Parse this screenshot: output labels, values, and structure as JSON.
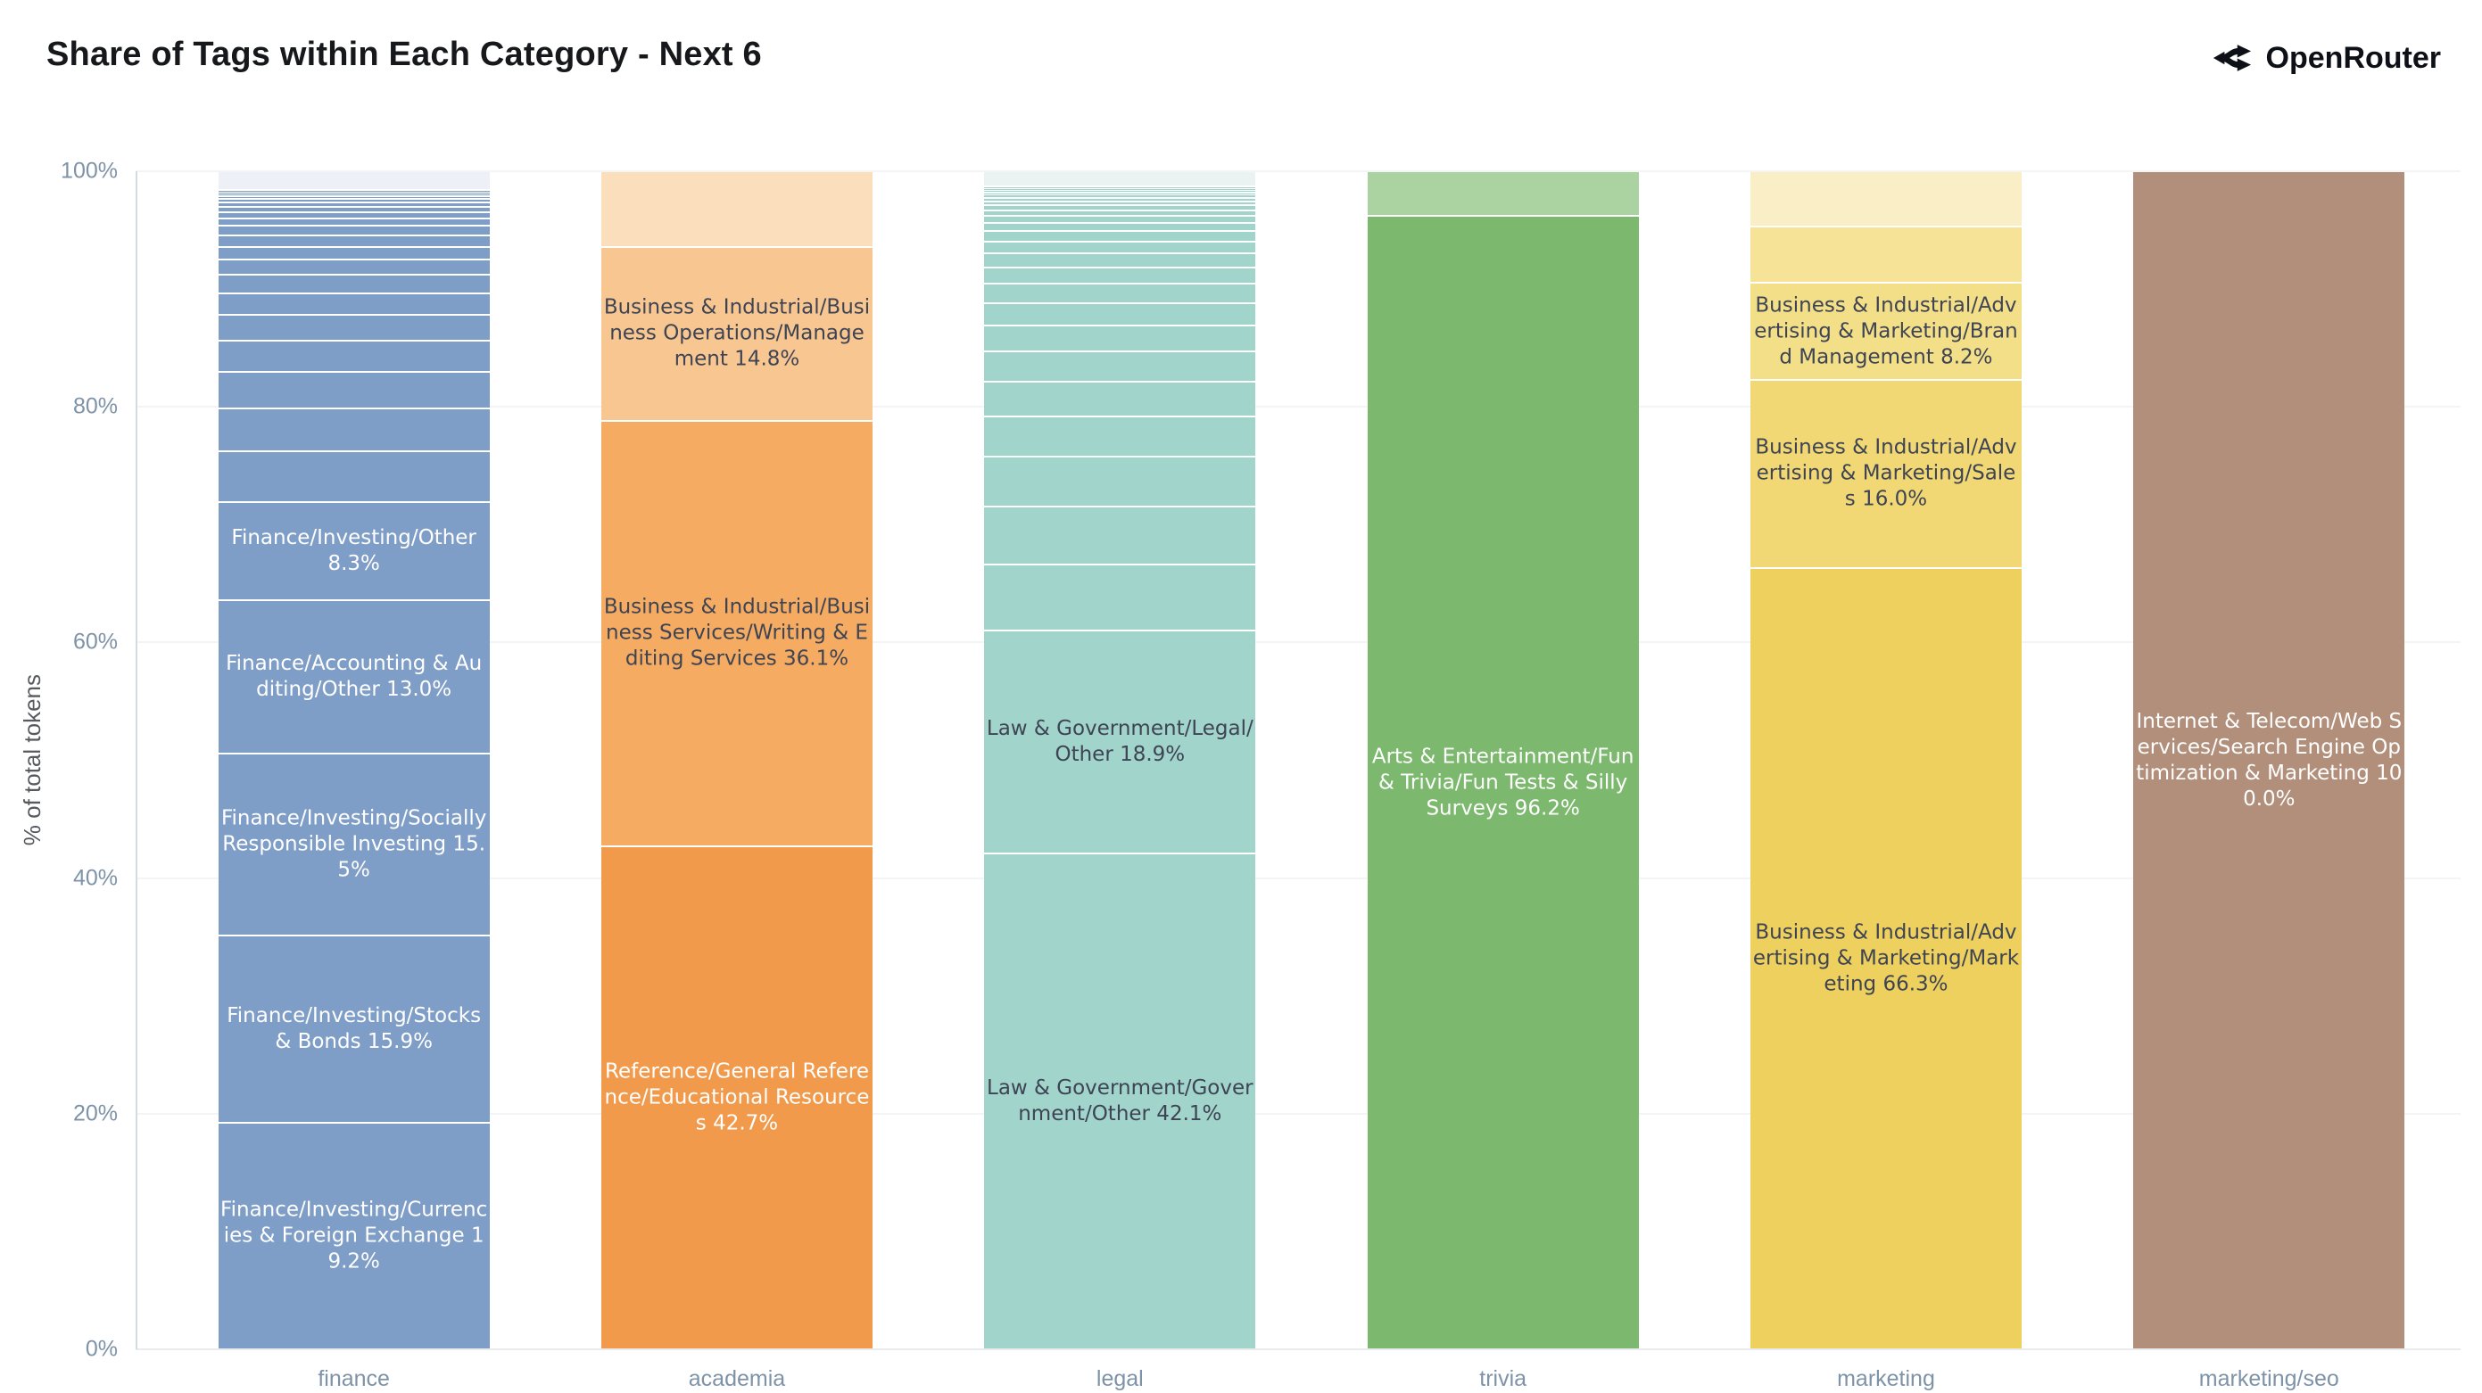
{
  "header": {
    "title": "Share of Tags within Each Category - Next 6",
    "brand": "OpenRouter"
  },
  "y_axis": {
    "label": "% of total tokens",
    "ticks": [
      "0%",
      "20%",
      "40%",
      "60%",
      "80%",
      "100%"
    ]
  },
  "chart_data": {
    "type": "bar",
    "stacked": true,
    "unit": "% of total tokens",
    "ylim": [
      0,
      100
    ],
    "grid": true,
    "categories": [
      "finance",
      "academia",
      "legal",
      "trivia",
      "marketing",
      "marketing/seo"
    ],
    "bars": [
      {
        "category": "finance",
        "segments": [
          {
            "value": 1.6,
            "color": "#edf1f7"
          },
          {
            "value": 0.15,
            "color": "#7f9ec7"
          },
          {
            "value": 0.15,
            "color": "#7f9ec7"
          },
          {
            "value": 0.2,
            "color": "#7f9ec7"
          },
          {
            "value": 0.25,
            "color": "#7f9ec7"
          },
          {
            "value": 0.3,
            "color": "#7f9ec7"
          },
          {
            "value": 0.35,
            "color": "#7f9ec7"
          },
          {
            "value": 0.45,
            "color": "#7f9ec7"
          },
          {
            "value": 0.55,
            "color": "#7f9ec7"
          },
          {
            "value": 0.65,
            "color": "#7f9ec7"
          },
          {
            "value": 0.8,
            "color": "#7f9ec7"
          },
          {
            "value": 0.95,
            "color": "#7f9ec7"
          },
          {
            "value": 1.1,
            "color": "#7f9ec7"
          },
          {
            "value": 1.3,
            "color": "#7f9ec7"
          },
          {
            "value": 1.55,
            "color": "#7f9ec7"
          },
          {
            "value": 1.85,
            "color": "#7f9ec7"
          },
          {
            "value": 2.2,
            "color": "#7f9ec7"
          },
          {
            "value": 2.6,
            "color": "#7f9ec7"
          },
          {
            "value": 3.1,
            "color": "#7f9ec7"
          },
          {
            "value": 3.7,
            "color": "#7f9ec7"
          },
          {
            "value": 4.3,
            "color": "#7f9ec7"
          },
          {
            "label": "Finance/Investing/Other 8.3%",
            "value": 8.3,
            "color": "#7f9ec7",
            "text_color": "#ffffff"
          },
          {
            "label": "Finance/Accounting & Auditing/Other 13.0%",
            "value": 13.0,
            "color": "#7f9ec7",
            "text_color": "#ffffff"
          },
          {
            "label": "Finance/Investing/Socially Responsible Investing 15.5%",
            "value": 15.5,
            "color": "#7f9ec7",
            "text_color": "#ffffff"
          },
          {
            "label": "Finance/Investing/Stocks & Bonds 15.9%",
            "value": 15.9,
            "color": "#7f9ec7",
            "text_color": "#ffffff"
          },
          {
            "label": "Finance/Investing/Currencies & Foreign Exchange 19.2%",
            "value": 19.2,
            "color": "#7f9ec7",
            "text_color": "#ffffff"
          }
        ]
      },
      {
        "category": "academia",
        "segments": [
          {
            "value": 6.4,
            "color": "#fbdebb"
          },
          {
            "label": "Business & Industrial/Business Operations/Management 14.8%",
            "value": 14.8,
            "color": "#f8c791",
            "text_color": "#3e4453"
          },
          {
            "label": "Business & Industrial/Business Services/Writing & Editing Services 36.1%",
            "value": 36.1,
            "color": "#f5ab62",
            "text_color": "#3e4453"
          },
          {
            "label": "Reference/General Reference/Educational Resources 42.7%",
            "value": 42.7,
            "color": "#f29a4b",
            "text_color": "#ffffff"
          }
        ]
      },
      {
        "category": "legal",
        "segments": [
          {
            "value": 1.3,
            "color": "#eaf3f1"
          },
          {
            "value": 0.15,
            "color": "#a1d4ca"
          },
          {
            "value": 0.15,
            "color": "#a1d4ca"
          },
          {
            "value": 0.2,
            "color": "#a1d4ca"
          },
          {
            "value": 0.2,
            "color": "#a1d4ca"
          },
          {
            "value": 0.25,
            "color": "#a1d4ca"
          },
          {
            "value": 0.3,
            "color": "#a1d4ca"
          },
          {
            "value": 0.35,
            "color": "#a1d4ca"
          },
          {
            "value": 0.4,
            "color": "#a1d4ca"
          },
          {
            "value": 0.5,
            "color": "#a1d4ca"
          },
          {
            "value": 0.6,
            "color": "#a1d4ca"
          },
          {
            "value": 0.7,
            "color": "#a1d4ca"
          },
          {
            "value": 0.85,
            "color": "#a1d4ca"
          },
          {
            "value": 1.0,
            "color": "#a1d4ca"
          },
          {
            "value": 1.2,
            "color": "#a1d4ca"
          },
          {
            "value": 1.4,
            "color": "#a1d4ca"
          },
          {
            "value": 1.65,
            "color": "#a1d4ca"
          },
          {
            "value": 1.9,
            "color": "#a1d4ca"
          },
          {
            "value": 2.2,
            "color": "#a1d4ca"
          },
          {
            "value": 2.55,
            "color": "#a1d4ca"
          },
          {
            "value": 2.95,
            "color": "#a1d4ca"
          },
          {
            "value": 3.4,
            "color": "#a1d4ca"
          },
          {
            "value": 4.3,
            "color": "#a1d4ca"
          },
          {
            "value": 4.9,
            "color": "#a1d4ca"
          },
          {
            "value": 5.6,
            "color": "#a1d4ca"
          },
          {
            "label": "Law & Government/Legal/Other 18.9%",
            "value": 18.9,
            "color": "#a1d4ca",
            "text_color": "#3e4453"
          },
          {
            "label": "Law & Government/Government/Other 42.1%",
            "value": 42.1,
            "color": "#a1d4ca",
            "text_color": "#3e4453"
          }
        ]
      },
      {
        "category": "trivia",
        "segments": [
          {
            "value": 3.8,
            "color": "#abd3a2"
          },
          {
            "label": "Arts & Entertainment/Fun & Trivia/Fun Tests & Silly Surveys 96.2%",
            "value": 96.2,
            "color": "#7cb96e",
            "text_color": "#ffffff"
          }
        ]
      },
      {
        "category": "marketing",
        "segments": [
          {
            "value": 4.7,
            "color": "#faeec6"
          },
          {
            "value": 4.8,
            "color": "#f6e397"
          },
          {
            "label": "Business & Industrial/Advertising & Marketing/Brand Management 8.2%",
            "value": 8.2,
            "color": "#f4df89",
            "text_color": "#3e4453"
          },
          {
            "label": "Business & Industrial/Advertising & Marketing/Sales 16.0%",
            "value": 16.0,
            "color": "#f1d874",
            "text_color": "#3e4453"
          },
          {
            "label": "Business & Industrial/Advertising & Marketing/Marketing 66.3%",
            "value": 66.3,
            "color": "#edd05e",
            "text_color": "#3e4453"
          }
        ]
      },
      {
        "category": "marketing/seo",
        "segments": [
          {
            "label": "Internet & Telecom/Web Services/Search Engine Optimization & Marketing 100.0%",
            "value": 100.0,
            "color": "#b28f7b",
            "text_color": "#ffffff"
          }
        ]
      }
    ]
  }
}
